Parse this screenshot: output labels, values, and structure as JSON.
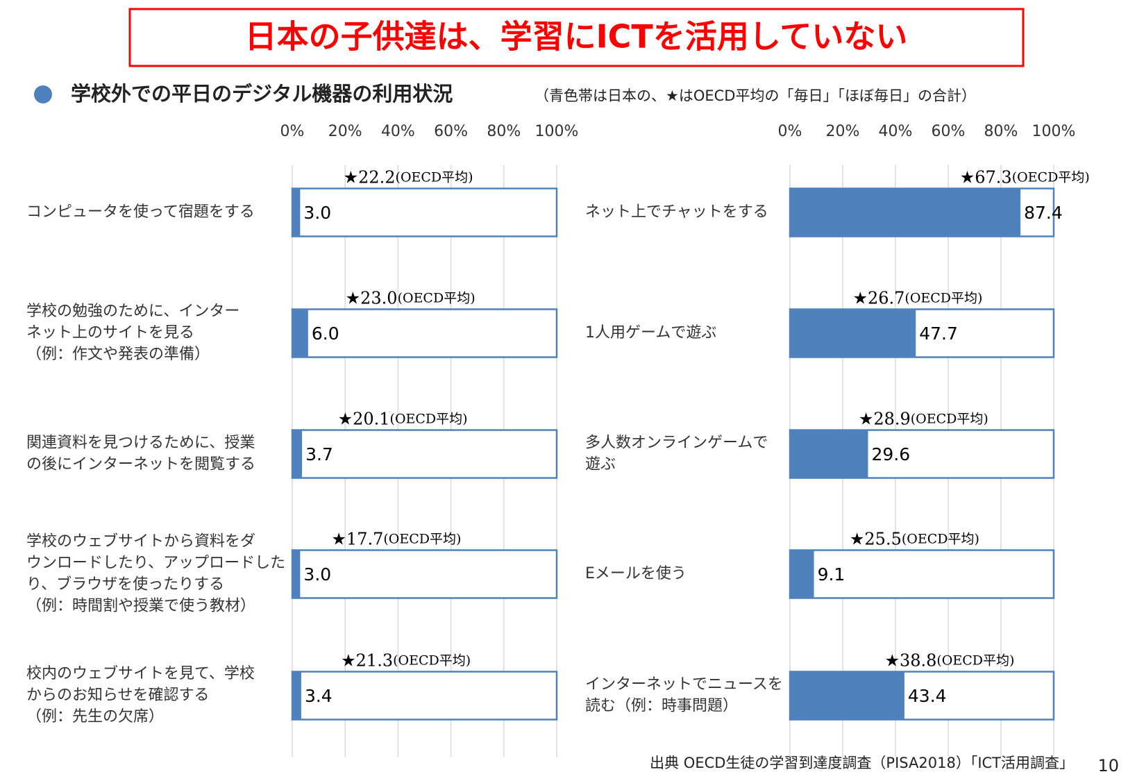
{
  "title": "日本の子供達は、学習にICTを活用していない",
  "subtitle": "学校外での平日のデジタル機器の利用状況",
  "note": "（青色帯は日本の、★はOECD平均の「毎日」「ほぼ毎日」の合計）",
  "source": "出典 OECD生徒の学習到達度調査（PISA2018）「ICT活用調査」",
  "page_number": "10",
  "chart_data": [
    {
      "type": "bar",
      "orientation": "horizontal",
      "color": "#4f81bd",
      "categories": [
        [
          "コンピュータを使って宿題をする"
        ],
        [
          "学校の勉強のために、インター",
          "ネット上のサイトを見る",
          "（例：作文や発表の準備）"
        ],
        [
          "関連資料を見つけるために、授業",
          "の後にインターネットを閲覧する"
        ],
        [
          "学校のウェブサイトから資料をダ",
          "ウンロードしたり、アップロードした",
          "り、ブラウザを使ったりする",
          "（例：時間割や授業で使う教材）"
        ],
        [
          "校内のウェブサイトを見て、学校",
          "からのお知らせを確認する",
          "（例：先生の欠席）"
        ]
      ],
      "values": [
        3.0,
        6.0,
        3.7,
        3.0,
        3.4
      ],
      "value_labels": [
        "3.0",
        "6.0",
        "3.7",
        "3.0",
        "3.4"
      ],
      "oecd": {
        "marker": "★",
        "label": "(OECD平均)",
        "values": [
          22.2,
          23.0,
          20.1,
          17.7,
          21.3
        ],
        "value_labels": [
          "22.2",
          "23.0",
          "20.1",
          "17.7",
          "21.3"
        ]
      },
      "xlim": [
        0,
        100
      ],
      "xticks": [
        {
          "value": 0,
          "label": "0%"
        },
        {
          "value": 20,
          "label": "20%"
        },
        {
          "value": 40,
          "label": "40%"
        },
        {
          "value": 60,
          "label": "60%"
        },
        {
          "value": 80,
          "label": "80%"
        },
        {
          "value": 100,
          "label": "100%"
        }
      ],
      "grid": true
    },
    {
      "type": "bar",
      "orientation": "horizontal",
      "color": "#4f81bd",
      "categories": [
        [
          "ネット上でチャットをする"
        ],
        [
          "1人用ゲームで遊ぶ"
        ],
        [
          "多人数オンラインゲームで",
          "遊ぶ"
        ],
        [
          "Eメールを使う"
        ],
        [
          "インターネットでニュースを",
          "読む（例：時事問題）"
        ]
      ],
      "values": [
        87.4,
        47.7,
        29.6,
        9.1,
        43.4
      ],
      "value_labels": [
        "87.4",
        "47.7",
        "29.6",
        "9.1",
        "43.4"
      ],
      "oecd": {
        "marker": "★",
        "label": "(OECD平均)",
        "values": [
          67.3,
          26.7,
          28.9,
          25.5,
          38.8
        ],
        "value_labels": [
          "67.3",
          "26.7",
          "28.9",
          "25.5",
          "38.8"
        ]
      },
      "xlim": [
        0,
        100
      ],
      "xticks": [
        {
          "value": 0,
          "label": "0%"
        },
        {
          "value": 20,
          "label": "20%"
        },
        {
          "value": 40,
          "label": "40%"
        },
        {
          "value": 60,
          "label": "60%"
        },
        {
          "value": 80,
          "label": "80%"
        },
        {
          "value": 100,
          "label": "100%"
        }
      ],
      "grid": true
    }
  ]
}
